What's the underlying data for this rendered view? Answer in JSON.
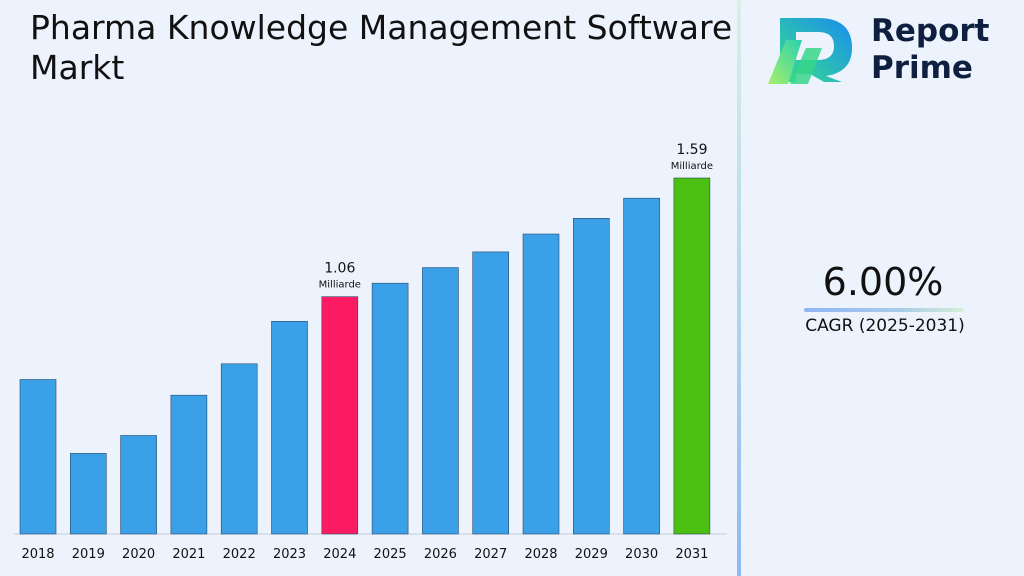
{
  "title": "Pharma Knowledge Management Software Markt",
  "brand": {
    "line1": "Report",
    "line2": "Prime"
  },
  "cagr": {
    "value": "6.00%",
    "label": "CAGR (2025-2031)"
  },
  "colors": {
    "default_bar": "#3aa0e8",
    "highlight_2024": "#fc1b62",
    "highlight_2031": "#4cc010",
    "brand_dark": "#0f1f3f"
  },
  "chart_data": {
    "type": "bar",
    "categories": [
      "2018",
      "2019",
      "2020",
      "2021",
      "2022",
      "2023",
      "2024",
      "2025",
      "2026",
      "2027",
      "2028",
      "2029",
      "2030",
      "2031"
    ],
    "values": [
      0.69,
      0.36,
      0.44,
      0.62,
      0.76,
      0.95,
      1.06,
      1.12,
      1.19,
      1.26,
      1.34,
      1.41,
      1.5,
      1.59
    ],
    "annotations": [
      {
        "category": "2024",
        "value": "1.06",
        "unit": "Milliarde"
      },
      {
        "category": "2031",
        "value": "1.59",
        "unit": "Milliarde"
      }
    ],
    "bar_colors": {
      "2024": "#fc1b62",
      "2031": "#4cc010"
    },
    "ylim": [
      0,
      1.59
    ]
  }
}
